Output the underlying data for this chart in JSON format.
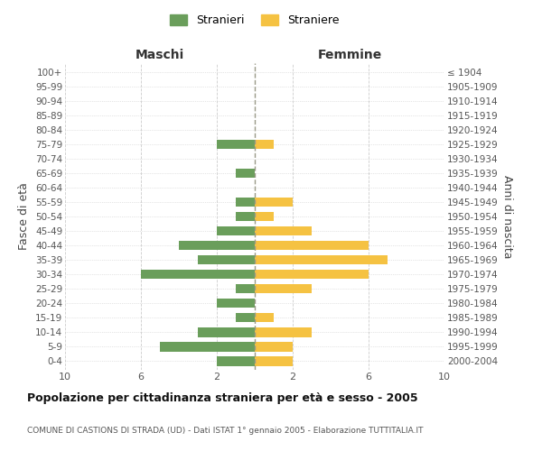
{
  "age_groups": [
    "0-4",
    "5-9",
    "10-14",
    "15-19",
    "20-24",
    "25-29",
    "30-34",
    "35-39",
    "40-44",
    "45-49",
    "50-54",
    "55-59",
    "60-64",
    "65-69",
    "70-74",
    "75-79",
    "80-84",
    "85-89",
    "90-94",
    "95-99",
    "100+"
  ],
  "birth_years": [
    "2000-2004",
    "1995-1999",
    "1990-1994",
    "1985-1989",
    "1980-1984",
    "1975-1979",
    "1970-1974",
    "1965-1969",
    "1960-1964",
    "1955-1959",
    "1950-1954",
    "1945-1949",
    "1940-1944",
    "1935-1939",
    "1930-1934",
    "1925-1929",
    "1920-1924",
    "1915-1919",
    "1910-1914",
    "1905-1909",
    "≤ 1904"
  ],
  "maschi": [
    2,
    5,
    3,
    1,
    2,
    1,
    6,
    3,
    4,
    2,
    1,
    1,
    0,
    1,
    0,
    2,
    0,
    0,
    0,
    0,
    0
  ],
  "femmine": [
    2,
    2,
    3,
    1,
    0,
    3,
    6,
    7,
    6,
    3,
    1,
    2,
    0,
    0,
    0,
    1,
    0,
    0,
    0,
    0,
    0
  ],
  "color_maschi": "#6a9e5b",
  "color_femmine": "#f5c242",
  "title": "Popolazione per cittadinanza straniera per età e sesso - 2005",
  "subtitle": "COMUNE DI CASTIONS DI STRADA (UD) - Dati ISTAT 1° gennaio 2005 - Elaborazione TUTTITALIA.IT",
  "xlabel_left": "Maschi",
  "xlabel_right": "Femmine",
  "ylabel_left": "Fasce di età",
  "ylabel_right": "Anni di nascita",
  "legend_maschi": "Stranieri",
  "legend_femmine": "Straniere",
  "xlim": 10,
  "background_color": "#ffffff",
  "grid_color": "#cccccc"
}
